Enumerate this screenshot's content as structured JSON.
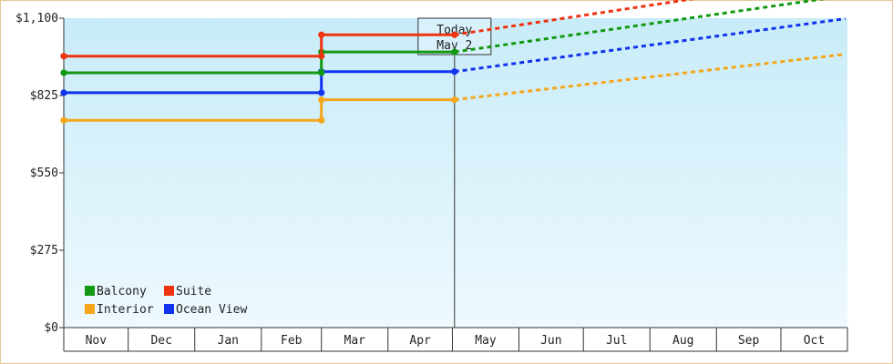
{
  "chart_data": {
    "type": "line",
    "style": "step-with-dashed-forecast",
    "y_ticks": [
      "$0",
      "$275",
      "$550",
      "$825",
      "$1,100"
    ],
    "ylim": [
      0,
      1100
    ],
    "ytick_values": [
      0,
      275,
      550,
      825,
      1100
    ],
    "months": [
      "Nov",
      "Dec",
      "Jan",
      "Feb",
      "Mar",
      "Apr",
      "May",
      "Jun",
      "Jul",
      "Aug",
      "Sep",
      "Oct"
    ],
    "x_domain": [
      "2022-11-01",
      "2023-10-31"
    ],
    "today": {
      "line1": "Today",
      "line2": "May 2",
      "date": "2023-05-02"
    },
    "grid": false,
    "legend_position": "bottom-left",
    "series": [
      {
        "name": "Balcony",
        "color": "#119911",
        "steps": [
          {
            "start": "2022-11-01",
            "end": "2023-03-01",
            "value": 906
          },
          {
            "start": "2023-03-01",
            "end": "2023-05-02",
            "value": 980
          }
        ],
        "forecast": [
          {
            "date": "2023-05-02",
            "value": 980
          },
          {
            "date": "2023-10-31",
            "value": 1180
          }
        ]
      },
      {
        "name": "Suite",
        "color": "#ee3311",
        "steps": [
          {
            "start": "2022-11-01",
            "end": "2023-03-01",
            "value": 965
          },
          {
            "start": "2023-03-01",
            "end": "2023-05-02",
            "value": 1041
          }
        ],
        "forecast": [
          {
            "date": "2023-05-02",
            "value": 1041
          },
          {
            "date": "2023-10-31",
            "value": 1250
          }
        ]
      },
      {
        "name": "Interior",
        "color": "#f5a61a",
        "steps": [
          {
            "start": "2022-11-01",
            "end": "2023-03-01",
            "value": 737
          },
          {
            "start": "2023-03-01",
            "end": "2023-05-02",
            "value": 810
          }
        ],
        "forecast": [
          {
            "date": "2023-05-02",
            "value": 810
          },
          {
            "date": "2023-10-31",
            "value": 972
          }
        ]
      },
      {
        "name": "Ocean View",
        "color": "#1133ee",
        "steps": [
          {
            "start": "2022-11-01",
            "end": "2023-03-01",
            "value": 835
          },
          {
            "start": "2023-03-01",
            "end": "2023-05-02",
            "value": 910
          }
        ],
        "forecast": [
          {
            "date": "2023-05-02",
            "value": 910
          },
          {
            "date": "2023-10-31",
            "value": 1098
          }
        ]
      }
    ],
    "legend_order": [
      "Balcony",
      "Suite",
      "Interior",
      "Ocean View"
    ]
  }
}
